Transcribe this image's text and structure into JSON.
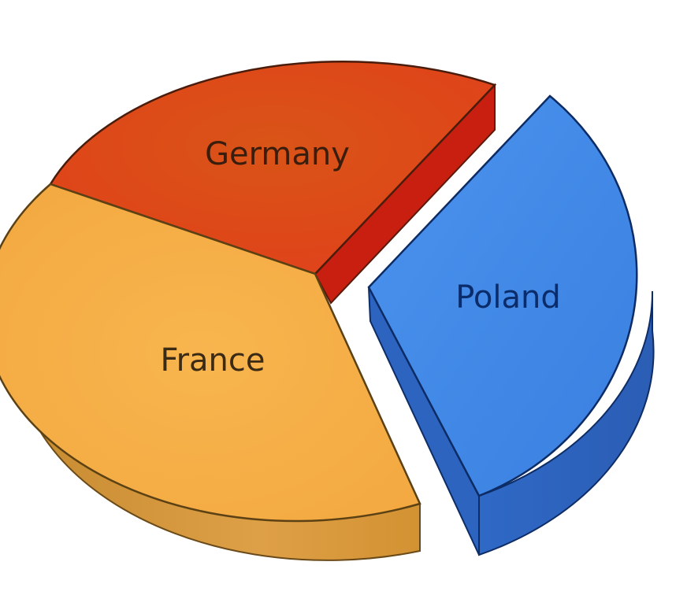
{
  "chart_data": {
    "type": "pie",
    "style": "3d-exploded",
    "slices": [
      {
        "label": "Germany",
        "value": 30,
        "color": "#e0441a",
        "text_color": "#3a1d0c",
        "exploded": false
      },
      {
        "label": "Poland",
        "value": 32,
        "color": "#3f87e6",
        "text_color": "#0b2c6a",
        "exploded": true
      },
      {
        "label": "France",
        "value": 38,
        "color": "#f6ae4a",
        "text_color": "#3b2a14",
        "exploded": false
      }
    ]
  }
}
